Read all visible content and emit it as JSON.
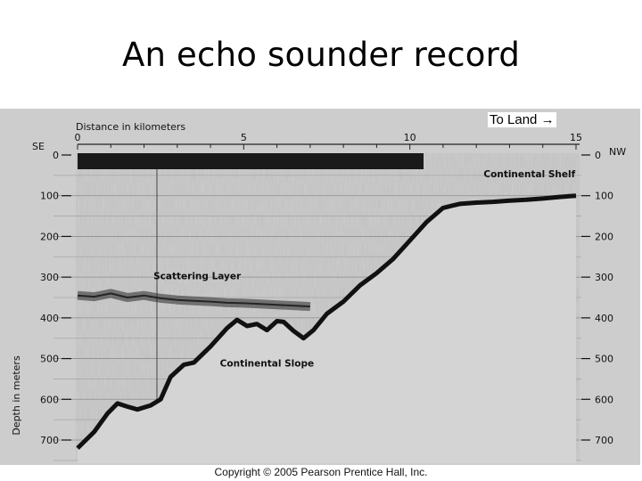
{
  "slide": {
    "title": "An echo sounder record",
    "copyright": "Copyright © 2005 Pearson Prentice Hall, Inc."
  },
  "chart_data": {
    "type": "line",
    "title": "",
    "xlabel": "Distance in kilometers",
    "ylabel": "Depth in meters",
    "xlim": [
      0,
      15
    ],
    "ylim": [
      0,
      700
    ],
    "y_reversed": true,
    "x_ticks": [
      "0",
      "5",
      "10",
      "15"
    ],
    "y_ticks": [
      "0",
      "100",
      "200",
      "300",
      "400",
      "500",
      "600",
      "700"
    ],
    "left_side_label": "SE",
    "right_side_label": "NW",
    "grid": true,
    "direction_note": "To Land",
    "annotations": [
      {
        "text": "Continental Shelf",
        "x": 13.6,
        "y": 55
      },
      {
        "text": "Scattering Layer",
        "x": 3.6,
        "y": 305
      },
      {
        "text": "Continental Slope",
        "x": 5.7,
        "y": 520
      }
    ],
    "series": [
      {
        "role": "sea-floor",
        "x": [
          0.0,
          0.5,
          0.9,
          1.2,
          1.5,
          1.8,
          2.2,
          2.5,
          2.8,
          3.2,
          3.5,
          4.0,
          4.5,
          4.8,
          5.1,
          5.4,
          5.7,
          6.0,
          6.2,
          6.5,
          6.8,
          7.1,
          7.5,
          8.0,
          8.5,
          9.0,
          9.5,
          10.0,
          10.5,
          11.0,
          11.5,
          12.0,
          12.5,
          13.0,
          13.5,
          14.0,
          14.5,
          15.0
        ],
        "y": [
          720,
          680,
          635,
          610,
          618,
          625,
          615,
          600,
          545,
          515,
          510,
          470,
          425,
          405,
          420,
          415,
          430,
          408,
          410,
          432,
          450,
          430,
          390,
          360,
          320,
          290,
          255,
          210,
          165,
          130,
          120,
          117,
          115,
          112,
          110,
          107,
          103,
          100
        ]
      },
      {
        "role": "scattering-layer",
        "x": [
          0.0,
          0.5,
          1.0,
          1.5,
          2.0,
          2.5,
          3.0,
          3.5,
          4.0,
          4.5,
          5.0,
          5.5,
          6.0,
          6.5,
          7.0
        ],
        "y": [
          345,
          348,
          340,
          350,
          345,
          352,
          356,
          358,
          360,
          363,
          364,
          366,
          368,
          370,
          372
        ]
      }
    ]
  }
}
